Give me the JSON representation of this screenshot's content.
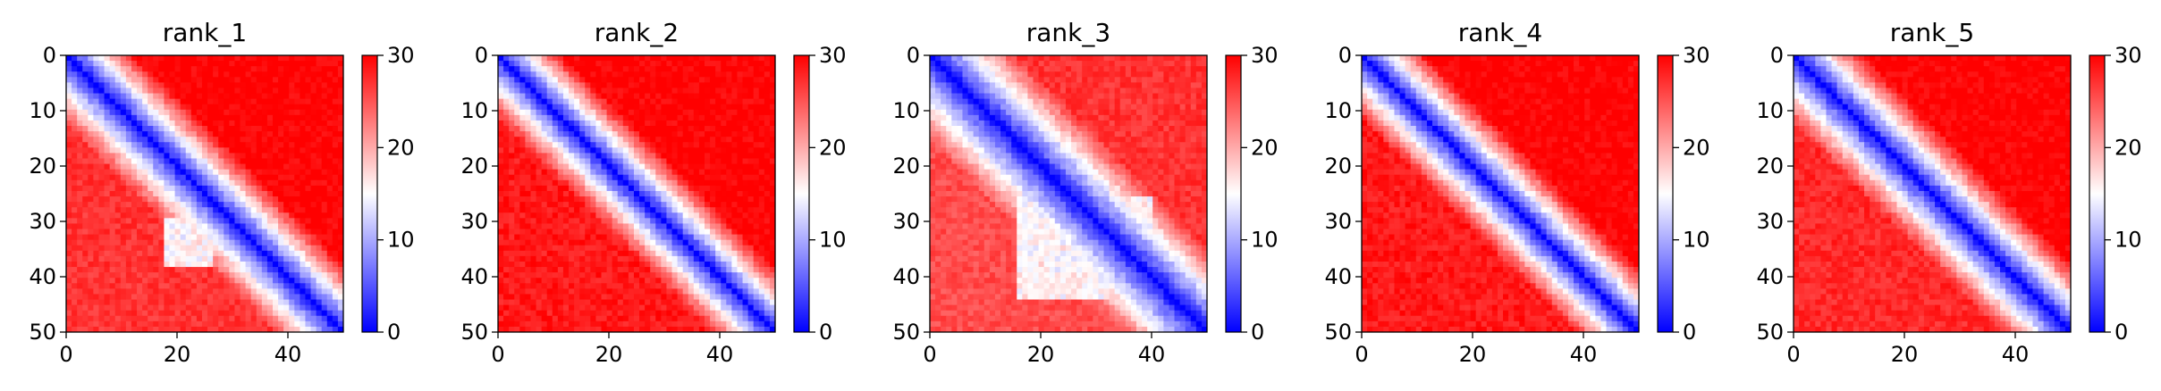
{
  "chart_data": [
    {
      "type": "heatmap",
      "title": "rank_1",
      "matrix_size": 51,
      "xlim": [
        0,
        50
      ],
      "ylim": [
        50,
        0
      ],
      "xticks": [
        0,
        20,
        40
      ],
      "yticks": [
        0,
        10,
        20,
        30,
        40,
        50
      ],
      "colorbar": {
        "min": 0,
        "max": 30,
        "ticks": [
          0,
          10,
          20,
          30
        ],
        "colormap": "bwr"
      },
      "pattern": {
        "diag_band_width": 13,
        "lower_left_high_ratio": 0.9,
        "upper_right_high_ratio": 1.0,
        "white_patch": {
          "x": [
            18,
            26
          ],
          "y": [
            30,
            38
          ]
        }
      }
    },
    {
      "type": "heatmap",
      "title": "rank_2",
      "matrix_size": 51,
      "xlim": [
        0,
        50
      ],
      "ylim": [
        50,
        0
      ],
      "xticks": [
        0,
        20,
        40
      ],
      "yticks": [
        0,
        10,
        20,
        30,
        40,
        50
      ],
      "colorbar": {
        "min": 0,
        "max": 30,
        "ticks": [
          0,
          10,
          20,
          30
        ],
        "colormap": "bwr"
      },
      "pattern": {
        "diag_band_width": 12,
        "lower_left_high_ratio": 0.95,
        "upper_right_high_ratio": 1.0,
        "white_patch": null
      }
    },
    {
      "type": "heatmap",
      "title": "rank_3",
      "matrix_size": 51,
      "xlim": [
        0,
        50
      ],
      "ylim": [
        50,
        0
      ],
      "xticks": [
        0,
        20,
        40
      ],
      "yticks": [
        0,
        10,
        20,
        30,
        40,
        50
      ],
      "colorbar": {
        "min": 0,
        "max": 30,
        "ticks": [
          0,
          10,
          20,
          30
        ],
        "colormap": "bwr"
      },
      "pattern": {
        "diag_band_width": 16,
        "lower_left_high_ratio": 0.85,
        "upper_right_high_ratio": 0.9,
        "white_patch": {
          "x": [
            16,
            40
          ],
          "y": [
            26,
            44
          ]
        }
      }
    },
    {
      "type": "heatmap",
      "title": "rank_4",
      "matrix_size": 51,
      "xlim": [
        0,
        50
      ],
      "ylim": [
        50,
        0
      ],
      "xticks": [
        0,
        20,
        40
      ],
      "yticks": [
        0,
        10,
        20,
        30,
        40,
        50
      ],
      "colorbar": {
        "min": 0,
        "max": 30,
        "ticks": [
          0,
          10,
          20,
          30
        ],
        "colormap": "bwr"
      },
      "pattern": {
        "diag_band_width": 12,
        "lower_left_high_ratio": 0.95,
        "upper_right_high_ratio": 1.0,
        "white_patch": null
      }
    },
    {
      "type": "heatmap",
      "title": "rank_5",
      "matrix_size": 51,
      "xlim": [
        0,
        50
      ],
      "ylim": [
        50,
        0
      ],
      "xticks": [
        0,
        20,
        40
      ],
      "yticks": [
        0,
        10,
        20,
        30,
        40,
        50
      ],
      "colorbar": {
        "min": 0,
        "max": 30,
        "ticks": [
          0,
          10,
          20,
          30
        ],
        "colormap": "bwr"
      },
      "pattern": {
        "diag_band_width": 13,
        "lower_left_high_ratio": 0.92,
        "upper_right_high_ratio": 1.0,
        "white_patch": null
      }
    }
  ]
}
